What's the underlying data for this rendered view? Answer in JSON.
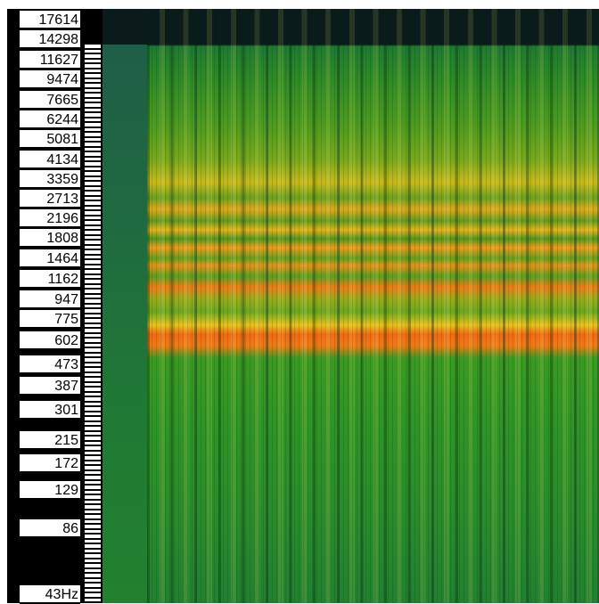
{
  "frequency_labels": [
    "17614",
    "14298",
    "11627",
    "9474",
    "7665",
    "6244",
    "5081",
    "4134",
    "3359",
    "2713",
    "2196",
    "1808",
    "1464",
    "1162",
    "947",
    "775",
    "602",
    "473",
    "387",
    "301",
    "215",
    "172",
    "129",
    "86",
    "43Hz"
  ]
}
